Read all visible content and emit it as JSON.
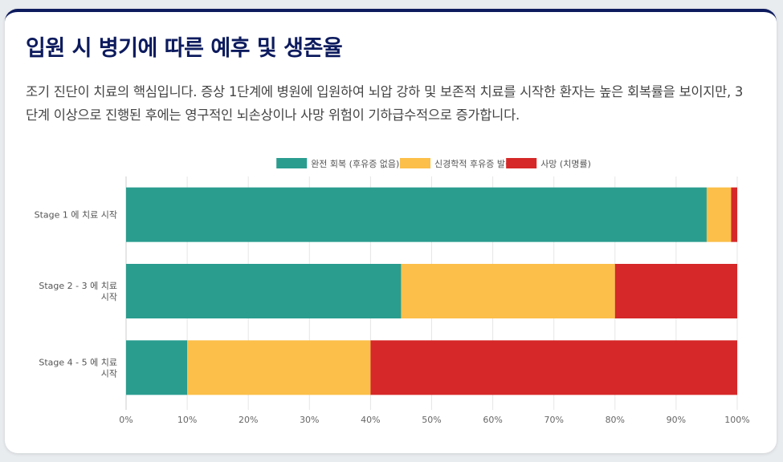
{
  "title": "입원 시 병기에 따른 예후 및 생존율",
  "description": "조기 진단이 치료의 핵심입니다. 증상 1단계에 병원에 입원하여 뇌압 강하 및 보존적 치료를 시작한 환자는 높은 회복률을 보이지만, 3단계 이상으로 진행된 후에는 영구적인 뇌손상이나 사망 위험이 기하급수적으로 증가합니다.",
  "chart_data": {
    "type": "bar",
    "orientation": "horizontal",
    "stacked": true,
    "categories": [
      [
        "Stage 1 에 치료 시작"
      ],
      [
        "Stage 2 - 3 에 치료",
        "시작"
      ],
      [
        "Stage 4 - 5 에 치료",
        "시작"
      ]
    ],
    "series": [
      {
        "name": "완전 회복 (후유증 없음)",
        "color": "#2a9d8f",
        "values": [
          95,
          45,
          10
        ]
      },
      {
        "name": "신경학적 후유증 발생",
        "color": "#fcbf49",
        "values": [
          4,
          35,
          30
        ]
      },
      {
        "name": "사망 (치명률)",
        "color": "#d62828",
        "values": [
          1,
          20,
          60
        ]
      }
    ],
    "xlim": [
      0,
      100
    ],
    "xticks": [
      "0%",
      "10%",
      "20%",
      "30%",
      "40%",
      "50%",
      "60%",
      "70%",
      "80%",
      "90%",
      "100%"
    ],
    "grid": true,
    "legend": "top"
  }
}
